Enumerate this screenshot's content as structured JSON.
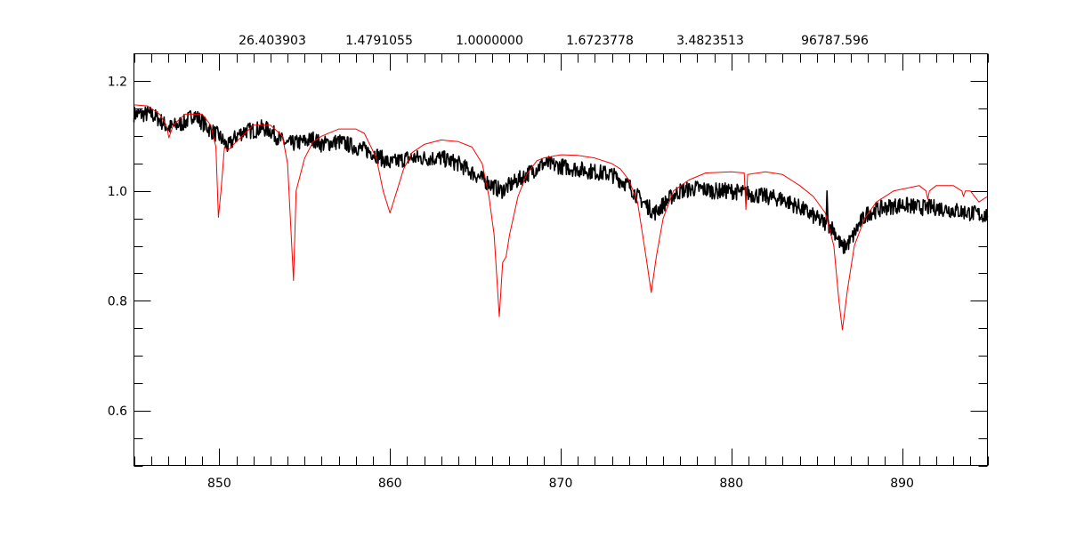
{
  "chart_data": {
    "type": "line",
    "title_values": [
      "26.403903",
      "1.4791055",
      "1.0000000",
      "1.6723778",
      "3.4823513",
      "96787.596"
    ],
    "xlim": [
      845,
      895
    ],
    "ylim": [
      0.5,
      1.25
    ],
    "x_ticks": [
      850,
      860,
      870,
      880,
      890
    ],
    "x_tick_labels": [
      "850",
      "860",
      "870",
      "880",
      "890"
    ],
    "y_ticks": [
      0.6,
      0.8,
      1.0,
      1.2
    ],
    "y_tick_labels": [
      "0.6",
      "0.8",
      "1.0",
      "1.2"
    ],
    "x_minor_step": 1,
    "y_minor_step": 0.05,
    "grid": false,
    "series": [
      {
        "color": "#ff0000",
        "x": [
          845.0,
          845.8,
          846.5,
          846.9,
          847.05,
          847.3,
          848,
          849,
          849.5,
          849.8,
          849.95,
          850.1,
          850.3,
          850.5,
          851,
          852,
          853,
          853.7,
          854.0,
          854.35,
          854.5,
          855,
          855.5,
          856,
          857,
          858,
          858.5,
          859.2,
          859.6,
          860.0,
          860.4,
          860.8,
          861.3,
          862,
          863,
          864,
          864.8,
          865.4,
          865.8,
          866.1,
          866.4,
          866.6,
          866.8,
          867,
          867.5,
          868,
          868.6,
          869,
          869.5,
          870,
          871,
          872,
          873,
          873.5,
          874,
          874.5,
          875,
          875.3,
          875.6,
          876,
          876.6,
          877.5,
          878.5,
          880,
          880.75,
          880.85,
          880.95,
          882,
          883,
          884,
          884.8,
          885.5,
          886,
          886.3,
          886.5,
          886.8,
          887.2,
          887.8,
          888.5,
          889.5,
          891,
          891.4,
          891.5,
          891.6,
          892,
          893,
          893.5,
          893.6,
          893.7,
          894,
          894.5,
          895
        ],
        "y": [
          1.157,
          1.155,
          1.14,
          1.12,
          1.097,
          1.12,
          1.14,
          1.14,
          1.12,
          1.08,
          0.952,
          1.0,
          1.08,
          1.074,
          1.09,
          1.12,
          1.12,
          1.1,
          1.05,
          0.837,
          1.0,
          1.06,
          1.09,
          1.1,
          1.113,
          1.113,
          1.105,
          1.06,
          1.0,
          0.96,
          1.0,
          1.04,
          1.07,
          1.085,
          1.093,
          1.09,
          1.08,
          1.05,
          0.99,
          0.92,
          0.771,
          0.87,
          0.88,
          0.92,
          0.99,
          1.03,
          1.055,
          1.06,
          1.063,
          1.066,
          1.065,
          1.06,
          1.05,
          1.04,
          1.02,
          0.98,
          0.88,
          0.815,
          0.88,
          0.95,
          1.0,
          1.02,
          1.033,
          1.035,
          1.033,
          0.966,
          1.03,
          1.035,
          1.03,
          1.01,
          0.99,
          0.96,
          0.9,
          0.8,
          0.747,
          0.82,
          0.9,
          0.95,
          0.98,
          1.0,
          1.01,
          1.0,
          0.985,
          1.0,
          1.01,
          1.01,
          1.0,
          0.99,
          1.0,
          1.0,
          0.98,
          0.99
        ]
      },
      {
        "color": "#000000",
        "x": [
          845,
          846,
          846.5,
          847,
          848,
          848.5,
          849,
          849.5,
          850,
          850.5,
          851,
          851.5,
          852,
          852.5,
          853,
          853.5,
          854,
          855,
          855.5,
          856,
          857,
          858,
          859,
          859.5,
          860,
          860.5,
          861,
          862,
          863,
          864,
          865,
          866,
          866.5,
          867,
          867.5,
          868,
          868.5,
          869,
          870,
          871,
          872,
          873,
          874,
          874.5,
          875,
          875.5,
          876,
          876.5,
          877,
          878,
          879,
          880,
          881,
          882,
          883,
          884,
          885,
          885.55,
          885.6,
          885.65,
          886,
          886.5,
          887,
          887.5,
          888,
          889,
          890,
          891,
          892,
          893,
          894,
          895
        ],
        "y": [
          1.14,
          1.14,
          1.13,
          1.115,
          1.125,
          1.14,
          1.125,
          1.11,
          1.1,
          1.08,
          1.1,
          1.11,
          1.11,
          1.115,
          1.11,
          1.095,
          1.085,
          1.09,
          1.095,
          1.085,
          1.09,
          1.08,
          1.07,
          1.06,
          1.05,
          1.055,
          1.06,
          1.06,
          1.06,
          1.05,
          1.03,
          1.01,
          1.0,
          1.01,
          1.02,
          1.03,
          1.04,
          1.05,
          1.045,
          1.04,
          1.035,
          1.03,
          1.01,
          0.99,
          0.975,
          0.96,
          0.975,
          0.99,
          1.0,
          1.005,
          1.0,
          1.0,
          0.995,
          0.99,
          0.985,
          0.97,
          0.95,
          0.94,
          1.0,
          0.94,
          0.93,
          0.895,
          0.91,
          0.94,
          0.96,
          0.97,
          0.975,
          0.97,
          0.97,
          0.965,
          0.96,
          0.955
        ]
      }
    ]
  }
}
